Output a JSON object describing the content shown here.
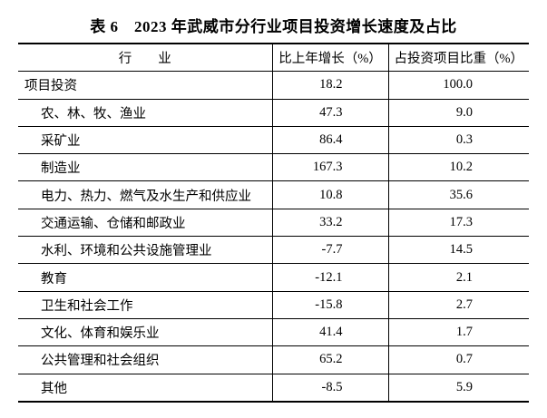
{
  "header": {
    "title": "表 6　2023 年武威市分行业项目投资增长速度及占比"
  },
  "table": {
    "columns": [
      "行　　业",
      "比上年增长（%）",
      "占投资项目比重（%）"
    ],
    "rows": [
      [
        "项目投资",
        "18.2",
        "100.0"
      ],
      [
        "农、林、牧、渔业",
        "47.3",
        "9.0"
      ],
      [
        "采矿业",
        "86.4",
        "0.3"
      ],
      [
        "制造业",
        "167.3",
        "10.2"
      ],
      [
        "电力、热力、燃气及水生产和供应业",
        "10.8",
        "35.6"
      ],
      [
        "交通运输、仓储和邮政业",
        "33.2",
        "17.3"
      ],
      [
        "水利、环境和公共设施管理业",
        "-7.7",
        "14.5"
      ],
      [
        "教育",
        "-12.1",
        "2.1"
      ],
      [
        "卫生和社会工作",
        "-15.8",
        "2.7"
      ],
      [
        "文化、体育和娱乐业",
        "41.4",
        "1.7"
      ],
      [
        "公共管理和社会组织",
        "65.2",
        "0.7"
      ],
      [
        "其他",
        "-8.5",
        "5.9"
      ]
    ]
  }
}
